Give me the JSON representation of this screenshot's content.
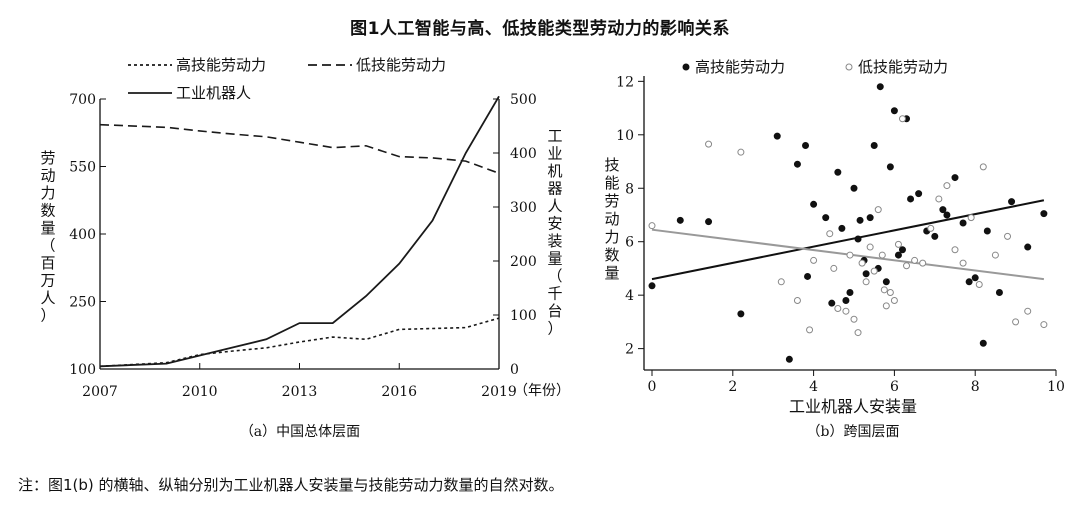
{
  "title": "图1人工智能与高、低技能类型劳动力的影响关系",
  "note": "注：图1(b) 的横轴、纵轴分别为工业机器人安装量与技能劳动力数量的自然对数。",
  "chart_data": [
    {
      "type": "line",
      "caption": "（a）中国总体层面",
      "x": [
        2007,
        2009,
        2010,
        2011,
        2012,
        2013,
        2014,
        2015,
        2016,
        2017,
        2018,
        2019
      ],
      "xticks": [
        2007,
        2010,
        2013,
        2016,
        2019
      ],
      "xunit": "（年份）",
      "ylabel_left": "劳动力数量（百万人）",
      "ylabel_right": "工业机器人安装量（千台）",
      "ylim_left": [
        100,
        700
      ],
      "yticks_left": [
        100,
        250,
        400,
        550,
        700
      ],
      "ylim_right": [
        0,
        500
      ],
      "yticks_right": [
        0,
        100,
        200,
        300,
        400,
        500
      ],
      "legend": [
        {
          "name": "高技能劳动力",
          "style": "dotted"
        },
        {
          "name": "低技能劳动力",
          "style": "dashed"
        },
        {
          "name": "工业机器人",
          "style": "solid"
        }
      ],
      "series": [
        {
          "name": "高技能劳动力",
          "axis": "left",
          "style": "dotted",
          "values": [
            106,
            114,
            132,
            140,
            147,
            160,
            171,
            166,
            188,
            190,
            192,
            213
          ]
        },
        {
          "name": "低技能劳动力",
          "axis": "left",
          "style": "dashed",
          "values": [
            643,
            637,
            629,
            622,
            616,
            604,
            592,
            596,
            572,
            569,
            562,
            535
          ]
        },
        {
          "name": "工业机器人",
          "axis": "right",
          "style": "solid",
          "values": [
            5,
            10,
            25,
            40,
            55,
            85,
            85,
            135,
            195,
            275,
            400,
            505
          ]
        }
      ]
    },
    {
      "type": "scatter",
      "caption": "（b）跨国层面",
      "xlabel": "工业机器人安装量",
      "ylabel": "技能劳动力数量",
      "xlim": [
        0,
        10
      ],
      "xticks": [
        0,
        2,
        4,
        6,
        8,
        10
      ],
      "ylim": [
        1.2,
        12.2
      ],
      "yticks": [
        2,
        4,
        6,
        8,
        10,
        12
      ],
      "legend": [
        {
          "name": "高技能劳动力",
          "marker": "filled"
        },
        {
          "name": "低技能劳动力",
          "marker": "hollow"
        }
      ],
      "series": [
        {
          "name": "高技能劳动力",
          "marker": "filled",
          "trend": [
            [
              0,
              4.6
            ],
            [
              9.7,
              7.55
            ]
          ],
          "points": [
            [
              0,
              4.35
            ],
            [
              0.7,
              6.8
            ],
            [
              1.4,
              6.75
            ],
            [
              2.2,
              3.3
            ],
            [
              3.1,
              9.95
            ],
            [
              3.4,
              1.6
            ],
            [
              3.6,
              8.9
            ],
            [
              3.8,
              9.6
            ],
            [
              3.85,
              4.7
            ],
            [
              4.0,
              7.4
            ],
            [
              4.3,
              6.9
            ],
            [
              4.45,
              3.7
            ],
            [
              4.6,
              8.6
            ],
            [
              4.7,
              6.5
            ],
            [
              4.8,
              3.8
            ],
            [
              4.9,
              4.1
            ],
            [
              5.0,
              8.0
            ],
            [
              5.1,
              6.1
            ],
            [
              5.15,
              6.8
            ],
            [
              5.25,
              5.3
            ],
            [
              5.3,
              4.8
            ],
            [
              5.4,
              6.9
            ],
            [
              5.5,
              9.6
            ],
            [
              5.6,
              5.0
            ],
            [
              5.65,
              11.8
            ],
            [
              5.8,
              4.5
            ],
            [
              5.9,
              8.8
            ],
            [
              6.0,
              10.9
            ],
            [
              6.1,
              5.5
            ],
            [
              6.2,
              5.7
            ],
            [
              6.3,
              10.6
            ],
            [
              6.4,
              7.6
            ],
            [
              6.6,
              7.8
            ],
            [
              6.8,
              6.4
            ],
            [
              7.0,
              6.2
            ],
            [
              7.2,
              7.2
            ],
            [
              7.3,
              7.0
            ],
            [
              7.5,
              8.4
            ],
            [
              7.7,
              6.7
            ],
            [
              7.85,
              4.5
            ],
            [
              8.0,
              4.65
            ],
            [
              8.2,
              2.2
            ],
            [
              8.3,
              6.4
            ],
            [
              8.6,
              4.1
            ],
            [
              8.9,
              7.5
            ],
            [
              9.3,
              5.8
            ],
            [
              9.7,
              7.05
            ]
          ]
        },
        {
          "name": "低技能劳动力",
          "marker": "hollow",
          "trend": [
            [
              0,
              6.45
            ],
            [
              9.7,
              4.6
            ]
          ],
          "points": [
            [
              0,
              6.6
            ],
            [
              1.4,
              9.65
            ],
            [
              2.2,
              9.35
            ],
            [
              3.2,
              4.5
            ],
            [
              3.6,
              3.8
            ],
            [
              3.9,
              2.7
            ],
            [
              4.0,
              5.3
            ],
            [
              4.4,
              6.3
            ],
            [
              4.5,
              5.0
            ],
            [
              4.6,
              3.5
            ],
            [
              4.8,
              3.4
            ],
            [
              4.9,
              5.5
            ],
            [
              5.0,
              3.1
            ],
            [
              5.1,
              2.6
            ],
            [
              5.2,
              5.2
            ],
            [
              5.3,
              4.5
            ],
            [
              5.4,
              5.8
            ],
            [
              5.5,
              4.9
            ],
            [
              5.6,
              7.2
            ],
            [
              5.7,
              5.5
            ],
            [
              5.75,
              4.2
            ],
            [
              5.8,
              3.6
            ],
            [
              5.9,
              4.1
            ],
            [
              6.0,
              3.8
            ],
            [
              6.1,
              5.9
            ],
            [
              6.2,
              10.6
            ],
            [
              6.3,
              5.1
            ],
            [
              6.5,
              5.3
            ],
            [
              6.7,
              5.2
            ],
            [
              6.9,
              6.5
            ],
            [
              7.1,
              7.6
            ],
            [
              7.3,
              8.1
            ],
            [
              7.5,
              5.7
            ],
            [
              7.7,
              5.2
            ],
            [
              7.9,
              6.9
            ],
            [
              8.1,
              4.4
            ],
            [
              8.2,
              8.8
            ],
            [
              8.5,
              5.5
            ],
            [
              8.8,
              6.2
            ],
            [
              9.0,
              3.0
            ],
            [
              9.3,
              3.4
            ],
            [
              9.7,
              2.9
            ]
          ]
        }
      ]
    }
  ]
}
